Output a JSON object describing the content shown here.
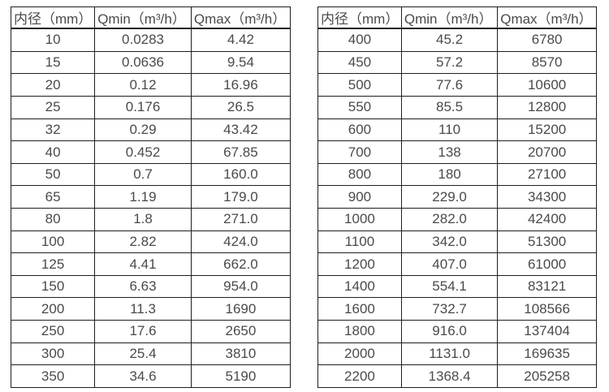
{
  "page": {
    "background_color": "#ffffff",
    "border_color": "#1f1f1f",
    "text_color": "#4a4a4a"
  },
  "tables": [
    {
      "name": "flow-table-small-diameters",
      "headers": [
        "内径（mm）",
        "Qmin（m³/h）",
        "Qmax（m³/h）"
      ],
      "rows": [
        [
          "10",
          "0.0283",
          "4.42"
        ],
        [
          "15",
          "0.0636",
          "9.54"
        ],
        [
          "20",
          "0.12",
          "16.96"
        ],
        [
          "25",
          "0.176",
          "26.5"
        ],
        [
          "32",
          "0.29",
          "43.42"
        ],
        [
          "40",
          "0.452",
          "67.85"
        ],
        [
          "50",
          "0.7",
          "160.0"
        ],
        [
          "65",
          "1.19",
          "179.0"
        ],
        [
          "80",
          "1.8",
          "271.0"
        ],
        [
          "100",
          "2.82",
          "424.0"
        ],
        [
          "125",
          "4.41",
          "662.0"
        ],
        [
          "150",
          "6.63",
          "954.0"
        ],
        [
          "200",
          "11.3",
          "1690"
        ],
        [
          "250",
          "17.6",
          "2650"
        ],
        [
          "300",
          "25.4",
          "3810"
        ],
        [
          "350",
          "34.6",
          "5190"
        ]
      ]
    },
    {
      "name": "flow-table-large-diameters",
      "headers": [
        "内径（mm）",
        "Qmin（m³/h）",
        "Qmax（m³/h）"
      ],
      "rows": [
        [
          "400",
          "45.2",
          "6780"
        ],
        [
          "450",
          "57.2",
          "8570"
        ],
        [
          "500",
          "77.6",
          "10600"
        ],
        [
          "550",
          "85.5",
          "12800"
        ],
        [
          "600",
          "110",
          "15200"
        ],
        [
          "700",
          "138",
          "20700"
        ],
        [
          "800",
          "180",
          "27100"
        ],
        [
          "900",
          "229.0",
          "34300"
        ],
        [
          "1000",
          "282.0",
          "42400"
        ],
        [
          "1100",
          "342.0",
          "51300"
        ],
        [
          "1200",
          "407.0",
          "61000"
        ],
        [
          "1400",
          "554.1",
          "83121"
        ],
        [
          "1600",
          "732.7",
          "108566"
        ],
        [
          "1800",
          "916.0",
          "137404"
        ],
        [
          "2000",
          "1131.0",
          "169635"
        ],
        [
          "2200",
          "1368.4",
          "205258"
        ]
      ]
    }
  ]
}
